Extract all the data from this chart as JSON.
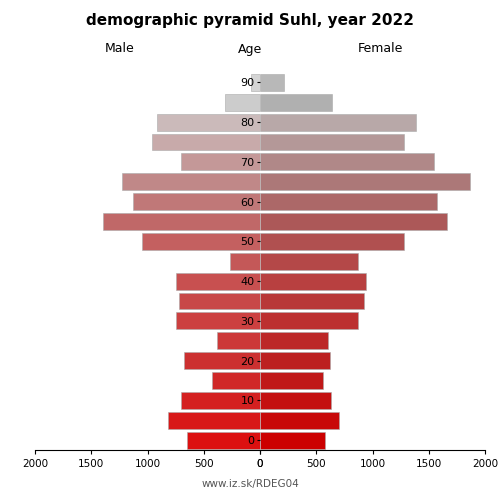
{
  "title": "demographic pyramid Suhl, year 2022",
  "xlabel_left": "Male",
  "xlabel_right": "Female",
  "xlabel_center": "Age",
  "footer": "www.iz.sk/RDEG04",
  "age_groups": [
    0,
    5,
    10,
    15,
    20,
    25,
    30,
    35,
    40,
    45,
    50,
    55,
    60,
    65,
    70,
    75,
    80,
    85,
    90
  ],
  "male_values": [
    650,
    820,
    700,
    430,
    680,
    380,
    750,
    720,
    750,
    270,
    1050,
    1400,
    1130,
    1230,
    700,
    960,
    920,
    310,
    80
  ],
  "female_values": [
    580,
    700,
    630,
    560,
    620,
    600,
    870,
    920,
    940,
    870,
    1280,
    1660,
    1570,
    1870,
    1550,
    1280,
    1390,
    640,
    210
  ],
  "xlim": 2000,
  "bar_height": 0.85,
  "background_color": "#ffffff"
}
